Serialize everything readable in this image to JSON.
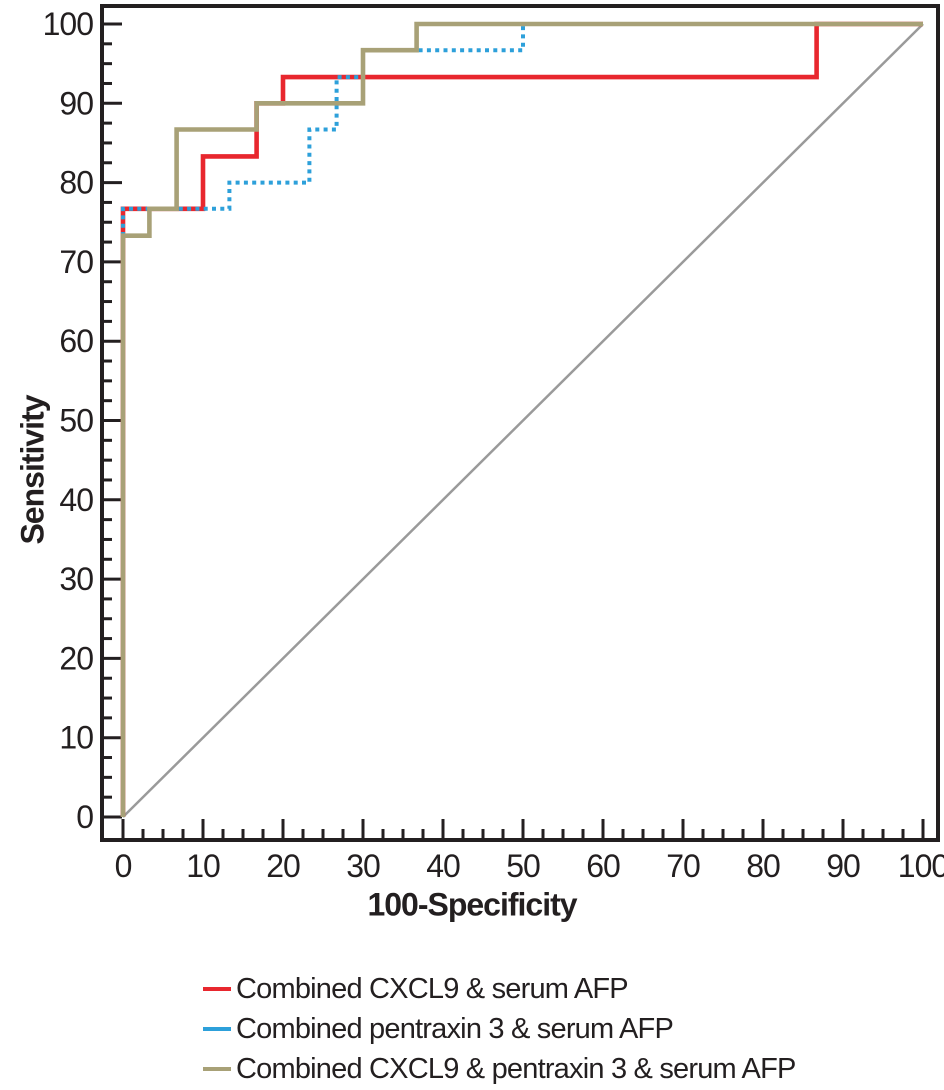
{
  "figure": {
    "kind": "ROC curve comparison plot",
    "background_color": "#ffffff"
  },
  "chart_data": {
    "type": "line",
    "subtype": "roc-step-curves",
    "title": "",
    "xlabel": "100-Specificity",
    "ylabel": "Sensitivity",
    "xlim": [
      0,
      100
    ],
    "ylim": [
      0,
      100
    ],
    "grid": false,
    "axis_color": "#231f20",
    "tick_label_color": "#231f20",
    "x_major_ticks": [
      0,
      10,
      20,
      30,
      40,
      50,
      60,
      70,
      80,
      90,
      100
    ],
    "y_major_ticks": [
      0,
      10,
      20,
      30,
      40,
      50,
      60,
      70,
      80,
      90,
      100
    ],
    "minor_tick_step": 2.5,
    "legend_position": "bottom-left",
    "series": [
      {
        "name": "Combined CXCL9 & serum AFP",
        "color": "#e8272e",
        "style": "solid",
        "points": [
          [
            0,
            0
          ],
          [
            0,
            76.7
          ],
          [
            10,
            76.7
          ],
          [
            10,
            83.3
          ],
          [
            16.7,
            83.3
          ],
          [
            16.7,
            90
          ],
          [
            20,
            90
          ],
          [
            20,
            93.3
          ],
          [
            86.7,
            93.3
          ],
          [
            86.7,
            100
          ],
          [
            100,
            100
          ]
        ]
      },
      {
        "name": "Combined pentraxin 3 & serum AFP",
        "color": "#2da0da",
        "style": "dotted",
        "points": [
          [
            0,
            0
          ],
          [
            0,
            76.7
          ],
          [
            13.3,
            76.7
          ],
          [
            13.3,
            80
          ],
          [
            23.3,
            80
          ],
          [
            23.3,
            86.7
          ],
          [
            26.7,
            86.7
          ],
          [
            26.7,
            93.3
          ],
          [
            30,
            93.3
          ],
          [
            30,
            96.7
          ],
          [
            50,
            96.7
          ],
          [
            50,
            100
          ],
          [
            100,
            100
          ]
        ]
      },
      {
        "name": "Combined CXCL9 & pentraxin 3 & serum AFP",
        "color": "#a8a177",
        "style": "solid",
        "points": [
          [
            0,
            0
          ],
          [
            0,
            73.3
          ],
          [
            3.3,
            73.3
          ],
          [
            3.3,
            76.7
          ],
          [
            6.7,
            76.7
          ],
          [
            6.7,
            86.7
          ],
          [
            16.7,
            86.7
          ],
          [
            16.7,
            90
          ],
          [
            30,
            90
          ],
          [
            30,
            96.7
          ],
          [
            36.7,
            96.7
          ],
          [
            36.7,
            100
          ],
          [
            100,
            100
          ]
        ]
      }
    ],
    "reference_line": {
      "name": "chance diagonal",
      "color": "#9a9a9a",
      "from": [
        0,
        0
      ],
      "to": [
        100,
        100
      ]
    }
  }
}
